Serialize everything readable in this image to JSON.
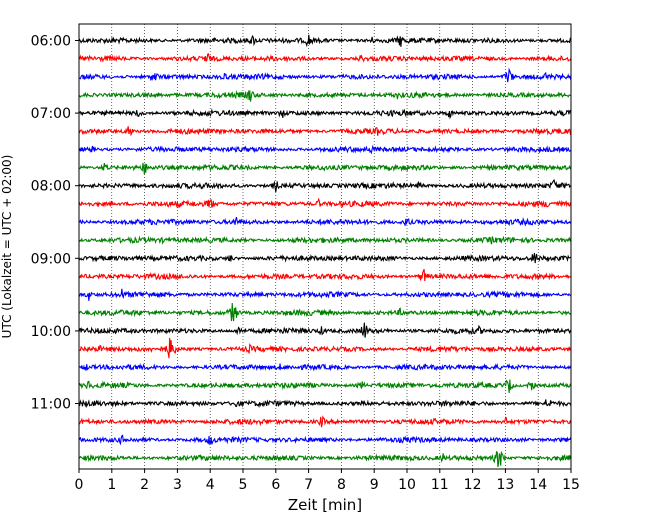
{
  "chart_data": {
    "type": "line",
    "title": "",
    "xlabel": "Zeit  [min]",
    "ylabel": "UTC (Lokalzeit = UTC + 02:00)",
    "xlim": [
      0,
      15
    ],
    "x_ticks": [
      0,
      1,
      2,
      3,
      4,
      5,
      6,
      7,
      8,
      9,
      10,
      11,
      12,
      13,
      14,
      15
    ],
    "x_grid": true,
    "y_ticks": [
      {
        "label": "06:00",
        "trace_index": 0
      },
      {
        "label": "07:00",
        "trace_index": 4
      },
      {
        "label": "08:00",
        "trace_index": 8
      },
      {
        "label": "09:00",
        "trace_index": 12
      },
      {
        "label": "10:00",
        "trace_index": 16
      },
      {
        "label": "11:00",
        "trace_index": 20
      }
    ],
    "trace_count": 24,
    "trace_interval_min": 15,
    "color_cycle": [
      "#000000",
      "#ff0000",
      "#0000ff",
      "#008000"
    ],
    "events": [
      {
        "trace": 0,
        "x": 5.3,
        "amp": 1.2
      },
      {
        "trace": 0,
        "x": 7.0,
        "amp": 1.6
      },
      {
        "trace": 0,
        "x": 8.9,
        "amp": 1.0
      },
      {
        "trace": 0,
        "x": 9.8,
        "amp": 1.5
      },
      {
        "trace": 1,
        "x": 3.9,
        "amp": 1.6
      },
      {
        "trace": 1,
        "x": 8.6,
        "amp": 1.0
      },
      {
        "trace": 2,
        "x": 2.3,
        "amp": 1.4
      },
      {
        "trace": 2,
        "x": 4.4,
        "amp": 1.2
      },
      {
        "trace": 2,
        "x": 13.1,
        "amp": 2.0
      },
      {
        "trace": 2,
        "x": 14.2,
        "amp": 1.2
      },
      {
        "trace": 3,
        "x": 5.2,
        "amp": 1.8
      },
      {
        "trace": 3,
        "x": 9.7,
        "amp": 0.9
      },
      {
        "trace": 4,
        "x": 1.8,
        "amp": 1.0
      },
      {
        "trace": 4,
        "x": 6.2,
        "amp": 1.1
      },
      {
        "trace": 4,
        "x": 11.3,
        "amp": 1.1
      },
      {
        "trace": 5,
        "x": 1.5,
        "amp": 1.6
      },
      {
        "trace": 5,
        "x": 9.1,
        "amp": 1.0
      },
      {
        "trace": 6,
        "x": 0.4,
        "amp": 0.8
      },
      {
        "trace": 6,
        "x": 8.9,
        "amp": 1.0
      },
      {
        "trace": 7,
        "x": 0.8,
        "amp": 1.2
      },
      {
        "trace": 7,
        "x": 2.0,
        "amp": 1.5
      },
      {
        "trace": 7,
        "x": 7.5,
        "amp": 0.9
      },
      {
        "trace": 8,
        "x": 6.0,
        "amp": 1.3
      },
      {
        "trace": 8,
        "x": 10.4,
        "amp": 1.0
      },
      {
        "trace": 8,
        "x": 14.5,
        "amp": 1.6
      },
      {
        "trace": 9,
        "x": 4.0,
        "amp": 1.6
      },
      {
        "trace": 9,
        "x": 7.3,
        "amp": 1.0
      },
      {
        "trace": 9,
        "x": 14.3,
        "amp": 1.0
      },
      {
        "trace": 10,
        "x": 4.8,
        "amp": 1.4
      },
      {
        "trace": 10,
        "x": 10.0,
        "amp": 1.2
      },
      {
        "trace": 11,
        "x": 2.6,
        "amp": 0.9
      },
      {
        "trace": 11,
        "x": 12.6,
        "amp": 1.0
      },
      {
        "trace": 12,
        "x": 4.6,
        "amp": 1.0
      },
      {
        "trace": 12,
        "x": 13.9,
        "amp": 1.6
      },
      {
        "trace": 13,
        "x": 10.5,
        "amp": 1.8
      },
      {
        "trace": 13,
        "x": 7.5,
        "amp": 0.8
      },
      {
        "trace": 14,
        "x": 0.3,
        "amp": 1.2
      },
      {
        "trace": 14,
        "x": 1.3,
        "amp": 1.3
      },
      {
        "trace": 15,
        "x": 4.7,
        "amp": 2.6
      },
      {
        "trace": 15,
        "x": 9.8,
        "amp": 1.0
      },
      {
        "trace": 16,
        "x": 4.9,
        "amp": 1.2
      },
      {
        "trace": 16,
        "x": 7.4,
        "amp": 1.0
      },
      {
        "trace": 16,
        "x": 8.7,
        "amp": 2.0
      },
      {
        "trace": 16,
        "x": 12.2,
        "amp": 1.0
      },
      {
        "trace": 17,
        "x": 0.6,
        "amp": 1.1
      },
      {
        "trace": 17,
        "x": 2.8,
        "amp": 3.0
      },
      {
        "trace": 17,
        "x": 5.2,
        "amp": 1.0
      },
      {
        "trace": 18,
        "x": 0.2,
        "amp": 0.9
      },
      {
        "trace": 18,
        "x": 6.1,
        "amp": 0.9
      },
      {
        "trace": 19,
        "x": 0.3,
        "amp": 1.1
      },
      {
        "trace": 19,
        "x": 8.6,
        "amp": 1.1
      },
      {
        "trace": 19,
        "x": 13.1,
        "amp": 1.8
      },
      {
        "trace": 19,
        "x": 13.8,
        "amp": 1.2
      },
      {
        "trace": 20,
        "x": 4.8,
        "amp": 1.0
      },
      {
        "trace": 20,
        "x": 14.3,
        "amp": 1.6
      },
      {
        "trace": 21,
        "x": 7.4,
        "amp": 1.3
      },
      {
        "trace": 21,
        "x": 13.0,
        "amp": 1.0
      },
      {
        "trace": 22,
        "x": 1.3,
        "amp": 1.1
      },
      {
        "trace": 22,
        "x": 4.0,
        "amp": 1.4
      },
      {
        "trace": 23,
        "x": 11.1,
        "amp": 1.0
      },
      {
        "trace": 23,
        "x": 12.8,
        "amp": 2.6
      }
    ]
  }
}
